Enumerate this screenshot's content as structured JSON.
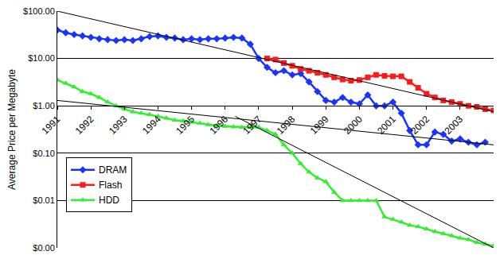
{
  "chart_data": {
    "type": "line",
    "y_label": "Average Price per Megabyte",
    "xlim": [
      1991,
      2004
    ],
    "xticks": [
      1991,
      1992,
      1993,
      1994,
      1995,
      1996,
      1997,
      1998,
      1999,
      2000,
      2001,
      2002,
      2003
    ],
    "ylim": [
      0.001,
      100
    ],
    "yticks": [
      {
        "value": 100,
        "label": "$100.00"
      },
      {
        "value": 10,
        "label": "$10.00"
      },
      {
        "value": 1,
        "label": "$1.00"
      },
      {
        "value": 0.1,
        "label": "$0.10"
      },
      {
        "value": 0.01,
        "label": "$0.01"
      },
      {
        "value": 0.001,
        "label": "$0.00"
      }
    ],
    "log": "y",
    "grid": true,
    "legend": "lower left",
    "series": [
      {
        "name": "DRAM",
        "color": "#1a33ff",
        "marker": "diamond",
        "line_style": "solid",
        "x": [
          1991,
          1991.25,
          1991.5,
          1991.75,
          1992,
          1992.25,
          1992.5,
          1992.75,
          1993,
          1993.25,
          1993.5,
          1993.75,
          1994,
          1994.25,
          1994.5,
          1994.75,
          1995,
          1995.25,
          1995.5,
          1995.75,
          1996,
          1996.25,
          1996.5,
          1996.75,
          1997,
          1997.25,
          1997.5,
          1997.75,
          1998,
          1998.25,
          1998.5,
          1998.75,
          1999,
          1999.25,
          1999.5,
          1999.75,
          2000,
          2000.25,
          2000.5,
          2000.75,
          2001,
          2001.25,
          2001.5,
          2001.75,
          2002,
          2002.25,
          2002.5,
          2002.75,
          2003,
          2003.25,
          2003.5,
          2003.75
        ],
        "values": [
          40,
          35,
          32,
          30,
          28,
          26,
          25,
          24,
          25,
          24,
          26,
          29,
          30,
          28,
          27,
          25,
          26,
          25,
          26,
          26,
          27,
          28,
          27,
          20,
          10,
          6.5,
          5,
          5.5,
          4.5,
          4.8,
          3.2,
          2,
          1.3,
          1.2,
          1.5,
          1.2,
          1.1,
          1.7,
          1.0,
          1.0,
          1.2,
          0.7,
          0.3,
          0.15,
          0.15,
          0.28,
          0.25,
          0.18,
          0.2,
          0.17,
          0.15,
          0.17
        ]
      },
      {
        "name": "Flash",
        "color": "#ff1a1a",
        "marker": "square",
        "line_style": "solid",
        "x": [
          1997.25,
          1997.5,
          1997.75,
          1998,
          1998.25,
          1998.5,
          1998.75,
          1999,
          1999.25,
          1999.5,
          1999.75,
          2000,
          2000.25,
          2000.5,
          2000.75,
          2001,
          2001.25,
          2001.5,
          2001.75,
          2002,
          2002.25,
          2002.5,
          2002.75,
          2003,
          2003.25,
          2003.5,
          2003.75,
          2004
        ],
        "values": [
          10,
          9.5,
          8,
          7,
          6,
          5.5,
          5,
          4.5,
          4,
          3.6,
          3.4,
          3.5,
          4,
          4.5,
          4.3,
          4.2,
          4.2,
          3.2,
          2.4,
          1.8,
          1.5,
          1.3,
          1.2,
          1.1,
          1.0,
          0.95,
          0.85,
          0.8
        ]
      },
      {
        "name": "HDD",
        "color": "#33ee33",
        "marker": "triangle",
        "line_style": "solid",
        "x": [
          1991,
          1991.25,
          1991.5,
          1991.75,
          1992,
          1992.25,
          1992.5,
          1992.75,
          1993,
          1993.25,
          1993.5,
          1993.75,
          1994,
          1994.25,
          1994.5,
          1994.75,
          1995,
          1995.25,
          1995.5,
          1995.75,
          1996,
          1996.25,
          1996.5,
          1996.75,
          1997,
          1997.25,
          1997.5,
          1997.75,
          1998,
          1998.25,
          1998.5,
          1998.75,
          1999,
          1999.25,
          1999.5,
          1999.75,
          2000,
          2000.25,
          2000.5,
          2000.75,
          2001,
          2001.25,
          2001.5,
          2001.75,
          2002,
          2002.25,
          2002.5,
          2002.75,
          2003,
          2003.25,
          2003.5,
          2003.75,
          2004
        ],
        "values": [
          3.5,
          3,
          2.5,
          2,
          1.8,
          1.5,
          1.2,
          1.0,
          0.85,
          0.75,
          0.7,
          0.65,
          0.6,
          0.55,
          0.5,
          0.48,
          0.45,
          0.43,
          0.4,
          0.38,
          0.37,
          0.36,
          0.35,
          0.35,
          0.35,
          0.3,
          0.25,
          0.15,
          0.1,
          0.06,
          0.04,
          0.03,
          0.025,
          0.015,
          0.01,
          0.01,
          0.01,
          0.01,
          0.01,
          0.0045,
          0.004,
          0.0035,
          0.003,
          0.0028,
          0.0025,
          0.0022,
          0.002,
          0.0018,
          0.0016,
          0.0015,
          0.0013,
          0.0012,
          0.0011
        ]
      },
      {
        "color": "#000000",
        "marker": "none",
        "line_style": "solid",
        "x": [
          1991,
          2004
        ],
        "values": [
          100,
          0.75
        ]
      },
      {
        "color": "#000000",
        "marker": "none",
        "line_style": "solid",
        "x": [
          1991,
          2004
        ],
        "values": [
          1.3,
          0.15
        ]
      },
      {
        "color": "#000000",
        "marker": "none",
        "line_style": "solid",
        "x": [
          1996.3,
          2004
        ],
        "values": [
          0.6,
          0.001
        ]
      }
    ]
  }
}
